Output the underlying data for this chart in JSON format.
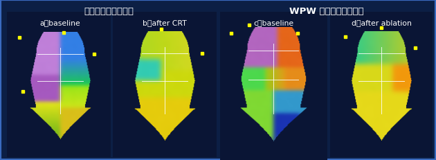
{
  "bg_color": "#0c1f45",
  "panel_bg": "#0a1535",
  "border_color": "#3a6abf",
  "title_left": "体循環右室同期不全",
  "title_right": "WPW 症候群の早期興奮",
  "label_a": "a：baseline",
  "label_b": "b：after CRT",
  "label_c": "c：baseline",
  "label_d": "d：after ablation",
  "fig_w": 6.3,
  "fig_h": 2.32,
  "dpi": 100
}
